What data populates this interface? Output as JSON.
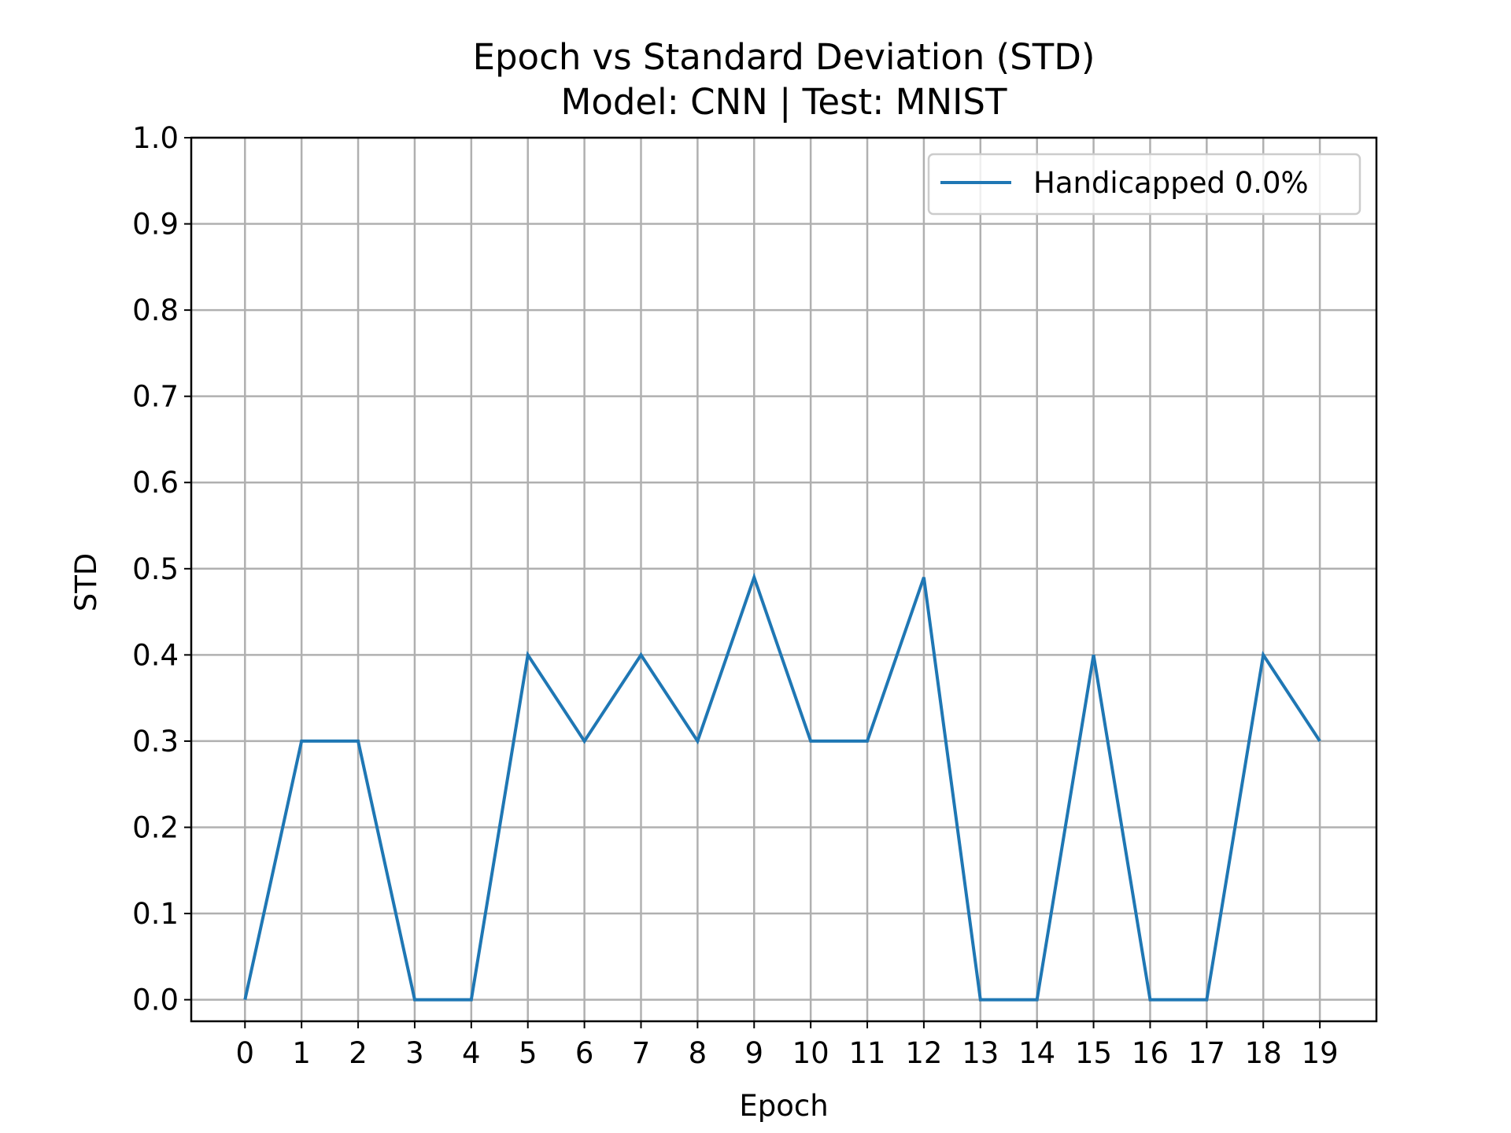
{
  "chart_data": {
    "type": "line",
    "title": "Epoch vs Standard Deviation (STD)",
    "subtitle": "Model: CNN | Test: MNIST",
    "xlabel": "Epoch",
    "ylabel": "STD",
    "x": [
      0,
      1,
      2,
      3,
      4,
      5,
      6,
      7,
      8,
      9,
      10,
      11,
      12,
      13,
      14,
      15,
      16,
      17,
      18,
      19
    ],
    "xticks": [
      "0",
      "1",
      "2",
      "3",
      "4",
      "5",
      "6",
      "7",
      "8",
      "9",
      "10",
      "11",
      "12",
      "13",
      "14",
      "15",
      "16",
      "17",
      "18",
      "19"
    ],
    "xlim": [
      -0.95,
      20.0
    ],
    "ylim": [
      -0.025,
      1.0
    ],
    "yticks": [
      "0.0",
      "0.1",
      "0.2",
      "0.3",
      "0.4",
      "0.5",
      "0.6",
      "0.7",
      "0.8",
      "0.9",
      "1.0"
    ],
    "grid": true,
    "legend_position": "top-right",
    "series": [
      {
        "name": "Handicapped 0.0%",
        "color": "#1f77b4",
        "values": [
          0.0,
          0.3,
          0.3,
          0.0,
          0.0,
          0.4,
          0.3,
          0.4,
          0.3,
          0.49,
          0.3,
          0.3,
          0.49,
          0.0,
          0.0,
          0.4,
          0.0,
          0.0,
          0.4,
          0.3
        ]
      }
    ]
  }
}
